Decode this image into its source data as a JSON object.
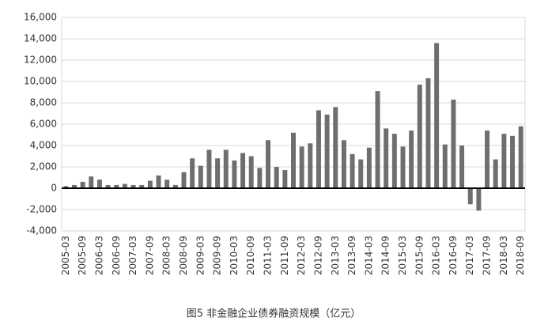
{
  "chart_data": {
    "type": "bar",
    "caption": "图5 非金融企业债券融资规模（亿元）",
    "categories": [
      "2005-03",
      null,
      "2005-09",
      null,
      "2006-03",
      null,
      "2006-09",
      null,
      "2007-03",
      null,
      "2007-09",
      null,
      "2008-03",
      null,
      "2008-09",
      null,
      "2009-03",
      null,
      "2009-09",
      null,
      "2010-03",
      null,
      "2010-09",
      null,
      "2011-03",
      null,
      "2011-09",
      null,
      "2012-03",
      null,
      "2012-09",
      null,
      "2013-03",
      null,
      "2013-09",
      null,
      "2014-03",
      null,
      "2014-09",
      null,
      "2015-03",
      null,
      "2015-09",
      null,
      "2016-03",
      null,
      "2016-09",
      null,
      "2017-03",
      null,
      "2017-09",
      null,
      "2018-03",
      null,
      "2018-09"
    ],
    "values": [
      200,
      300,
      600,
      1100,
      800,
      300,
      300,
      400,
      300,
      300,
      700,
      1200,
      800,
      300,
      1500,
      2800,
      2100,
      3600,
      2800,
      3600,
      2600,
      3300,
      3000,
      1900,
      4500,
      2000,
      1700,
      5200,
      3900,
      4200,
      7300,
      6900,
      7600,
      4500,
      3200,
      2700,
      3800,
      9100,
      5600,
      5100,
      3900,
      5400,
      9700,
      10300,
      13600,
      4100,
      8300,
      4000,
      -1500,
      -2100,
      5400,
      2700,
      5100,
      4900,
      5800
    ],
    "color": "#6e6e6e",
    "ylim": [
      -4000,
      16000
    ],
    "yticks": [
      {
        "value": -4000,
        "label": "-4,000"
      },
      {
        "value": -2000,
        "label": "-2,000"
      },
      0,
      {
        "value": 2000,
        "label": "2,000"
      },
      {
        "value": 4000,
        "label": "4,000"
      },
      {
        "value": 6000,
        "label": "6,000"
      },
      {
        "value": 8000,
        "label": "8,000"
      },
      {
        "value": 10000,
        "label": "10,000"
      },
      {
        "value": 12000,
        "label": "12,000"
      },
      {
        "value": 14000,
        "label": "14,000"
      },
      {
        "value": 16000,
        "label": "16,000"
      }
    ],
    "grid": true
  }
}
